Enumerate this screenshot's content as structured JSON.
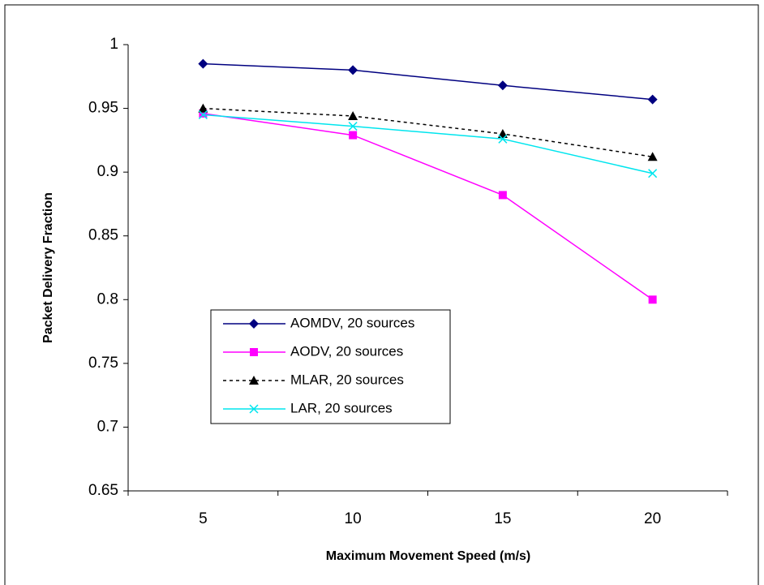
{
  "chart_data": {
    "type": "line",
    "x_label": "Maximum Movement Speed (m/s)",
    "y_label": "Packet Delivery Fraction",
    "categories": [
      "5",
      "10",
      "15",
      "20"
    ],
    "ylim": [
      0.65,
      1
    ],
    "yticks": [
      0.65,
      0.7,
      0.75,
      0.8,
      0.85,
      0.9,
      0.95,
      1
    ],
    "legend": "middle-left",
    "series": [
      {
        "name": "AOMDV, 20 sources",
        "color": "#000080",
        "marker": "diamond",
        "dash": "solid",
        "values": [
          0.985,
          0.98,
          0.968,
          0.957
        ]
      },
      {
        "name": "AODV, 20 sources",
        "color": "#ff00ff",
        "marker": "square",
        "dash": "solid",
        "values": [
          0.946,
          0.929,
          0.882,
          0.8
        ]
      },
      {
        "name": "MLAR, 20 sources",
        "color": "#000000",
        "marker": "triangle",
        "dash": "dotted",
        "values": [
          0.95,
          0.944,
          0.93,
          0.912
        ]
      },
      {
        "name": "LAR, 20 sources",
        "color": "#00e5ee",
        "marker": "x",
        "dash": "solid",
        "values": [
          0.945,
          0.936,
          0.926,
          0.899
        ]
      }
    ]
  }
}
